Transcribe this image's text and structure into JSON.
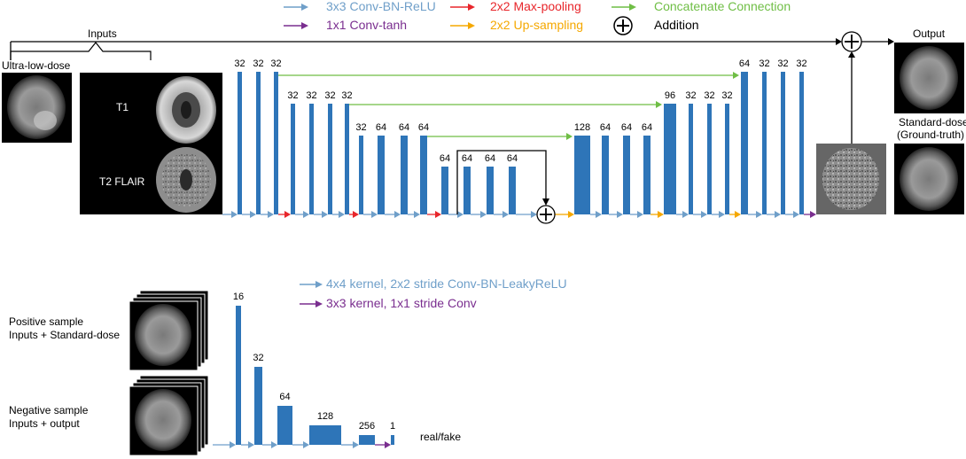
{
  "legend": {
    "generator": [
      {
        "label": "3x3 Conv-BN-ReLU",
        "color": "#6f9fc9"
      },
      {
        "label": "1x1 Conv-tanh",
        "color": "#7a2e8f"
      },
      {
        "label": "2x2 Max-pooling",
        "color": "#e8262b"
      },
      {
        "label": "2x2 Up-sampling",
        "color": "#f5a800"
      },
      {
        "label": "Concatenate Connection",
        "color": "#6fbe45"
      },
      {
        "label": "Addition",
        "color": "#000000"
      }
    ],
    "discriminator": [
      {
        "label": "4x4 kernel, 2x2 stride Conv-BN-LeakyReLU",
        "color": "#6f9fc9"
      },
      {
        "label": "3x3 kernel, 1x1 stride Conv",
        "color": "#7a2e8f"
      }
    ]
  },
  "labels": {
    "inputs": "Inputs",
    "ultra_low_dose": "Ultra-low-dose",
    "t1": "T1",
    "t2_flair": "T2 FLAIR",
    "output": "Output",
    "standard_dose_line1": "Standard-dose",
    "standard_dose_line2": "(Ground-truth)",
    "positive_line1": "Positive sample",
    "positive_line2": "Inputs + Standard-dose",
    "negative_line1": "Negative sample",
    "negative_line2": "Inputs + output",
    "real_fake": "real/fake"
  },
  "unet_channels": [
    "32",
    "32",
    "32",
    "32",
    "32",
    "32",
    "32",
    "32",
    "64",
    "64",
    "64",
    "64",
    "64",
    "64",
    "64",
    "128",
    "64",
    "64",
    "64",
    "96",
    "32",
    "32",
    "32",
    "64",
    "32",
    "32",
    "32"
  ],
  "disc_channels": [
    "16",
    "32",
    "64",
    "128",
    "256",
    "1"
  ],
  "colors": {
    "block": "#2e75b8",
    "conv": "#6f9fc9",
    "pool": "#e8262b",
    "up": "#f5a800",
    "concat": "#6fbe45",
    "final": "#7a2e8f"
  }
}
